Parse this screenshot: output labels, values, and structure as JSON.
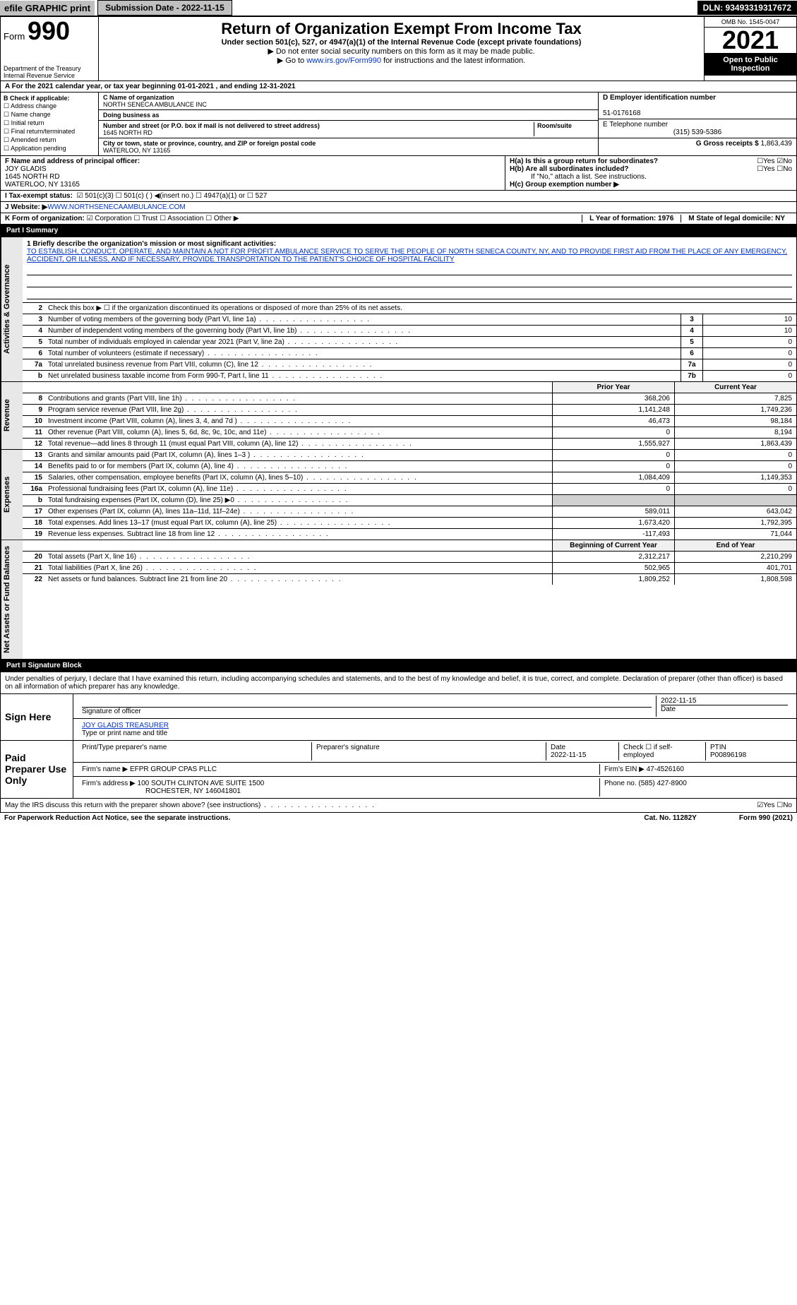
{
  "topbar": {
    "efile": "efile GRAPHIC print",
    "submission": "Submission Date - 2022-11-15",
    "dln": "DLN: 93493319317672"
  },
  "header": {
    "form_label": "Form",
    "form_num": "990",
    "title": "Return of Organization Exempt From Income Tax",
    "subtitle": "Under section 501(c), 527, or 4947(a)(1) of the Internal Revenue Code (except private foundations)",
    "warn": "▶ Do not enter social security numbers on this form as it may be made public.",
    "link_pre": "▶ Go to ",
    "link": "www.irs.gov/Form990",
    "link_post": " for instructions and the latest information.",
    "dept": "Department of the Treasury",
    "irs": "Internal Revenue Service",
    "omb": "OMB No. 1545-0047",
    "year": "2021",
    "open": "Open to Public Inspection"
  },
  "rowA": "A For the 2021 calendar year, or tax year beginning 01-01-2021    , and ending 12-31-2021",
  "colB": {
    "hdr": "B Check if applicable:",
    "items": [
      "☐ Address change",
      "☐ Name change",
      "☐ Initial return",
      "☐ Final return/terminated",
      "☐ Amended return",
      "☐ Application pending"
    ]
  },
  "colC": {
    "name_lbl": "C Name of organization",
    "name": "NORTH SENECA AMBULANCE INC",
    "dba_lbl": "Doing business as",
    "dba": "",
    "addr_lbl": "Number and street (or P.O. box if mail is not delivered to street address)",
    "room_lbl": "Room/suite",
    "addr": "1645 NORTH RD",
    "city_lbl": "City or town, state or province, country, and ZIP or foreign postal code",
    "city": "WATERLOO, NY  13165"
  },
  "colD": {
    "ein_lbl": "D Employer identification number",
    "ein": "51-0176168",
    "tel_lbl": "E Telephone number",
    "tel": "(315) 539-5386",
    "gross_lbl": "G Gross receipts $",
    "gross": "1,863,439"
  },
  "rowF": {
    "lbl": "F Name and address of principal officer:",
    "name": "JOY GLADIS",
    "addr1": "1645 NORTH RD",
    "addr2": "WATERLOO, NY  13165"
  },
  "rowH": {
    "a": "H(a)  Is this a group return for subordinates?",
    "a_ans": "☐Yes ☑No",
    "b": "H(b)  Are all subordinates included?",
    "b_ans": "☐Yes ☐No",
    "b_note": "If \"No,\" attach a list. See instructions.",
    "c": "H(c)  Group exemption number ▶"
  },
  "rowI": {
    "lbl": "I   Tax-exempt status:",
    "opts": "☑ 501(c)(3)   ☐ 501(c) (  ) ◀(insert no.)   ☐ 4947(a)(1) or   ☐ 527"
  },
  "rowJ": {
    "lbl": "J  Website: ▶ ",
    "val": "WWW.NORTHSENECAAMBULANCE.COM"
  },
  "rowK": {
    "lbl": "K Form of organization:",
    "opts": "☑ Corporation ☐ Trust ☐ Association ☐ Other ▶",
    "L": "L Year of formation: 1976",
    "M": "M State of legal domicile: NY"
  },
  "part1": {
    "title": "Part I      Summary",
    "mission_lbl": "1 Briefly describe the organization's mission or most significant activities:",
    "mission": "TO ESTABLISH, CONDUCT, OPERATE, AND MAINTAIN A NOT FOR PROFIT AMBULANCE SERVICE TO SERVE THE PEOPLE OF NORTH SENECA COUNTY, NY, AND TO PROVIDE FIRST AID FROM THE PLACE OF ANY EMERGENCY, ACCIDENT, OR ILLNESS, AND IF NECESSARY, PROVIDE TRANSPORTATION TO THE PATIENT'S CHOICE OF HOSPITAL FACILITY",
    "line2": "Check this box ▶ ☐ if the organization discontinued its operations or disposed of more than 25% of its net assets.",
    "gov_rows": [
      {
        "n": "3",
        "d": "Number of voting members of the governing body (Part VI, line 1a)",
        "box": "3",
        "v": "10"
      },
      {
        "n": "4",
        "d": "Number of independent voting members of the governing body (Part VI, line 1b)",
        "box": "4",
        "v": "10"
      },
      {
        "n": "5",
        "d": "Total number of individuals employed in calendar year 2021 (Part V, line 2a)",
        "box": "5",
        "v": "0"
      },
      {
        "n": "6",
        "d": "Total number of volunteers (estimate if necessary)",
        "box": "6",
        "v": "0"
      },
      {
        "n": "7a",
        "d": "Total unrelated business revenue from Part VIII, column (C), line 12",
        "box": "7a",
        "v": "0"
      },
      {
        "n": "b",
        "d": "Net unrelated business taxable income from Form 990-T, Part I, line 11",
        "box": "7b",
        "v": "0"
      }
    ],
    "two_col_hdr": {
      "prior": "Prior Year",
      "current": "Current Year"
    },
    "revenue_rows": [
      {
        "n": "8",
        "d": "Contributions and grants (Part VIII, line 1h)",
        "p": "368,206",
        "c": "7,825"
      },
      {
        "n": "9",
        "d": "Program service revenue (Part VIII, line 2g)",
        "p": "1,141,248",
        "c": "1,749,236"
      },
      {
        "n": "10",
        "d": "Investment income (Part VIII, column (A), lines 3, 4, and 7d )",
        "p": "46,473",
        "c": "98,184"
      },
      {
        "n": "11",
        "d": "Other revenue (Part VIII, column (A), lines 5, 6d, 8c, 9c, 10c, and 11e)",
        "p": "0",
        "c": "8,194"
      },
      {
        "n": "12",
        "d": "Total revenue—add lines 8 through 11 (must equal Part VIII, column (A), line 12)",
        "p": "1,555,927",
        "c": "1,863,439"
      }
    ],
    "expense_rows": [
      {
        "n": "13",
        "d": "Grants and similar amounts paid (Part IX, column (A), lines 1–3 )",
        "p": "0",
        "c": "0"
      },
      {
        "n": "14",
        "d": "Benefits paid to or for members (Part IX, column (A), line 4)",
        "p": "0",
        "c": "0"
      },
      {
        "n": "15",
        "d": "Salaries, other compensation, employee benefits (Part IX, column (A), lines 5–10)",
        "p": "1,084,409",
        "c": "1,149,353"
      },
      {
        "n": "16a",
        "d": "Professional fundraising fees (Part IX, column (A), line 11e)",
        "p": "0",
        "c": "0"
      },
      {
        "n": "b",
        "d": "Total fundraising expenses (Part IX, column (D), line 25) ▶0",
        "p": "",
        "c": "",
        "shaded": true
      },
      {
        "n": "17",
        "d": "Other expenses (Part IX, column (A), lines 11a–11d, 11f–24e)",
        "p": "589,011",
        "c": "643,042"
      },
      {
        "n": "18",
        "d": "Total expenses. Add lines 13–17 (must equal Part IX, column (A), line 25)",
        "p": "1,673,420",
        "c": "1,792,395"
      },
      {
        "n": "19",
        "d": "Revenue less expenses. Subtract line 18 from line 12",
        "p": "-117,493",
        "c": "71,044"
      }
    ],
    "net_hdr": {
      "prior": "Beginning of Current Year",
      "current": "End of Year"
    },
    "net_rows": [
      {
        "n": "20",
        "d": "Total assets (Part X, line 16)",
        "p": "2,312,217",
        "c": "2,210,299"
      },
      {
        "n": "21",
        "d": "Total liabilities (Part X, line 26)",
        "p": "502,965",
        "c": "401,701"
      },
      {
        "n": "22",
        "d": "Net assets or fund balances. Subtract line 21 from line 20",
        "p": "1,809,252",
        "c": "1,808,598"
      }
    ],
    "side_gov": "Activities & Governance",
    "side_rev": "Revenue",
    "side_exp": "Expenses",
    "side_net": "Net Assets or Fund Balances"
  },
  "part2": {
    "title": "Part II     Signature Block",
    "decl": "Under penalties of perjury, I declare that I have examined this return, including accompanying schedules and statements, and to the best of my knowledge and belief, it is true, correct, and complete. Declaration of preparer (other than officer) is based on all information of which preparer has any knowledge.",
    "sign_here": "Sign Here",
    "sig_officer": "Signature of officer",
    "sig_date": "2022-11-15",
    "date_lbl": "Date",
    "officer": "JOY GLADIS  TREASURER",
    "officer_lbl": "Type or print name and title",
    "paid": "Paid Preparer Use Only",
    "prep_name_lbl": "Print/Type preparer's name",
    "prep_sig_lbl": "Preparer's signature",
    "prep_date": "2022-11-15",
    "prep_check": "Check ☐ if self-employed",
    "ptin_lbl": "PTIN",
    "ptin": "P00896198",
    "firm_name_lbl": "Firm's name    ▶",
    "firm_name": "EFPR GROUP CPAS PLLC",
    "firm_ein_lbl": "Firm's EIN ▶",
    "firm_ein": "47-4526160",
    "firm_addr_lbl": "Firm's address ▶",
    "firm_addr1": "100 SOUTH CLINTON AVE SUITE 1500",
    "firm_addr2": "ROCHESTER, NY  146041801",
    "firm_phone_lbl": "Phone no.",
    "firm_phone": "(585) 427-8900",
    "may_irs": "May the IRS discuss this return with the preparer shown above? (see instructions)",
    "may_ans": "☑Yes  ☐No"
  },
  "footer": {
    "left": "For Paperwork Reduction Act Notice, see the separate instructions.",
    "mid": "Cat. No. 11282Y",
    "right": "Form 990 (2021)"
  }
}
